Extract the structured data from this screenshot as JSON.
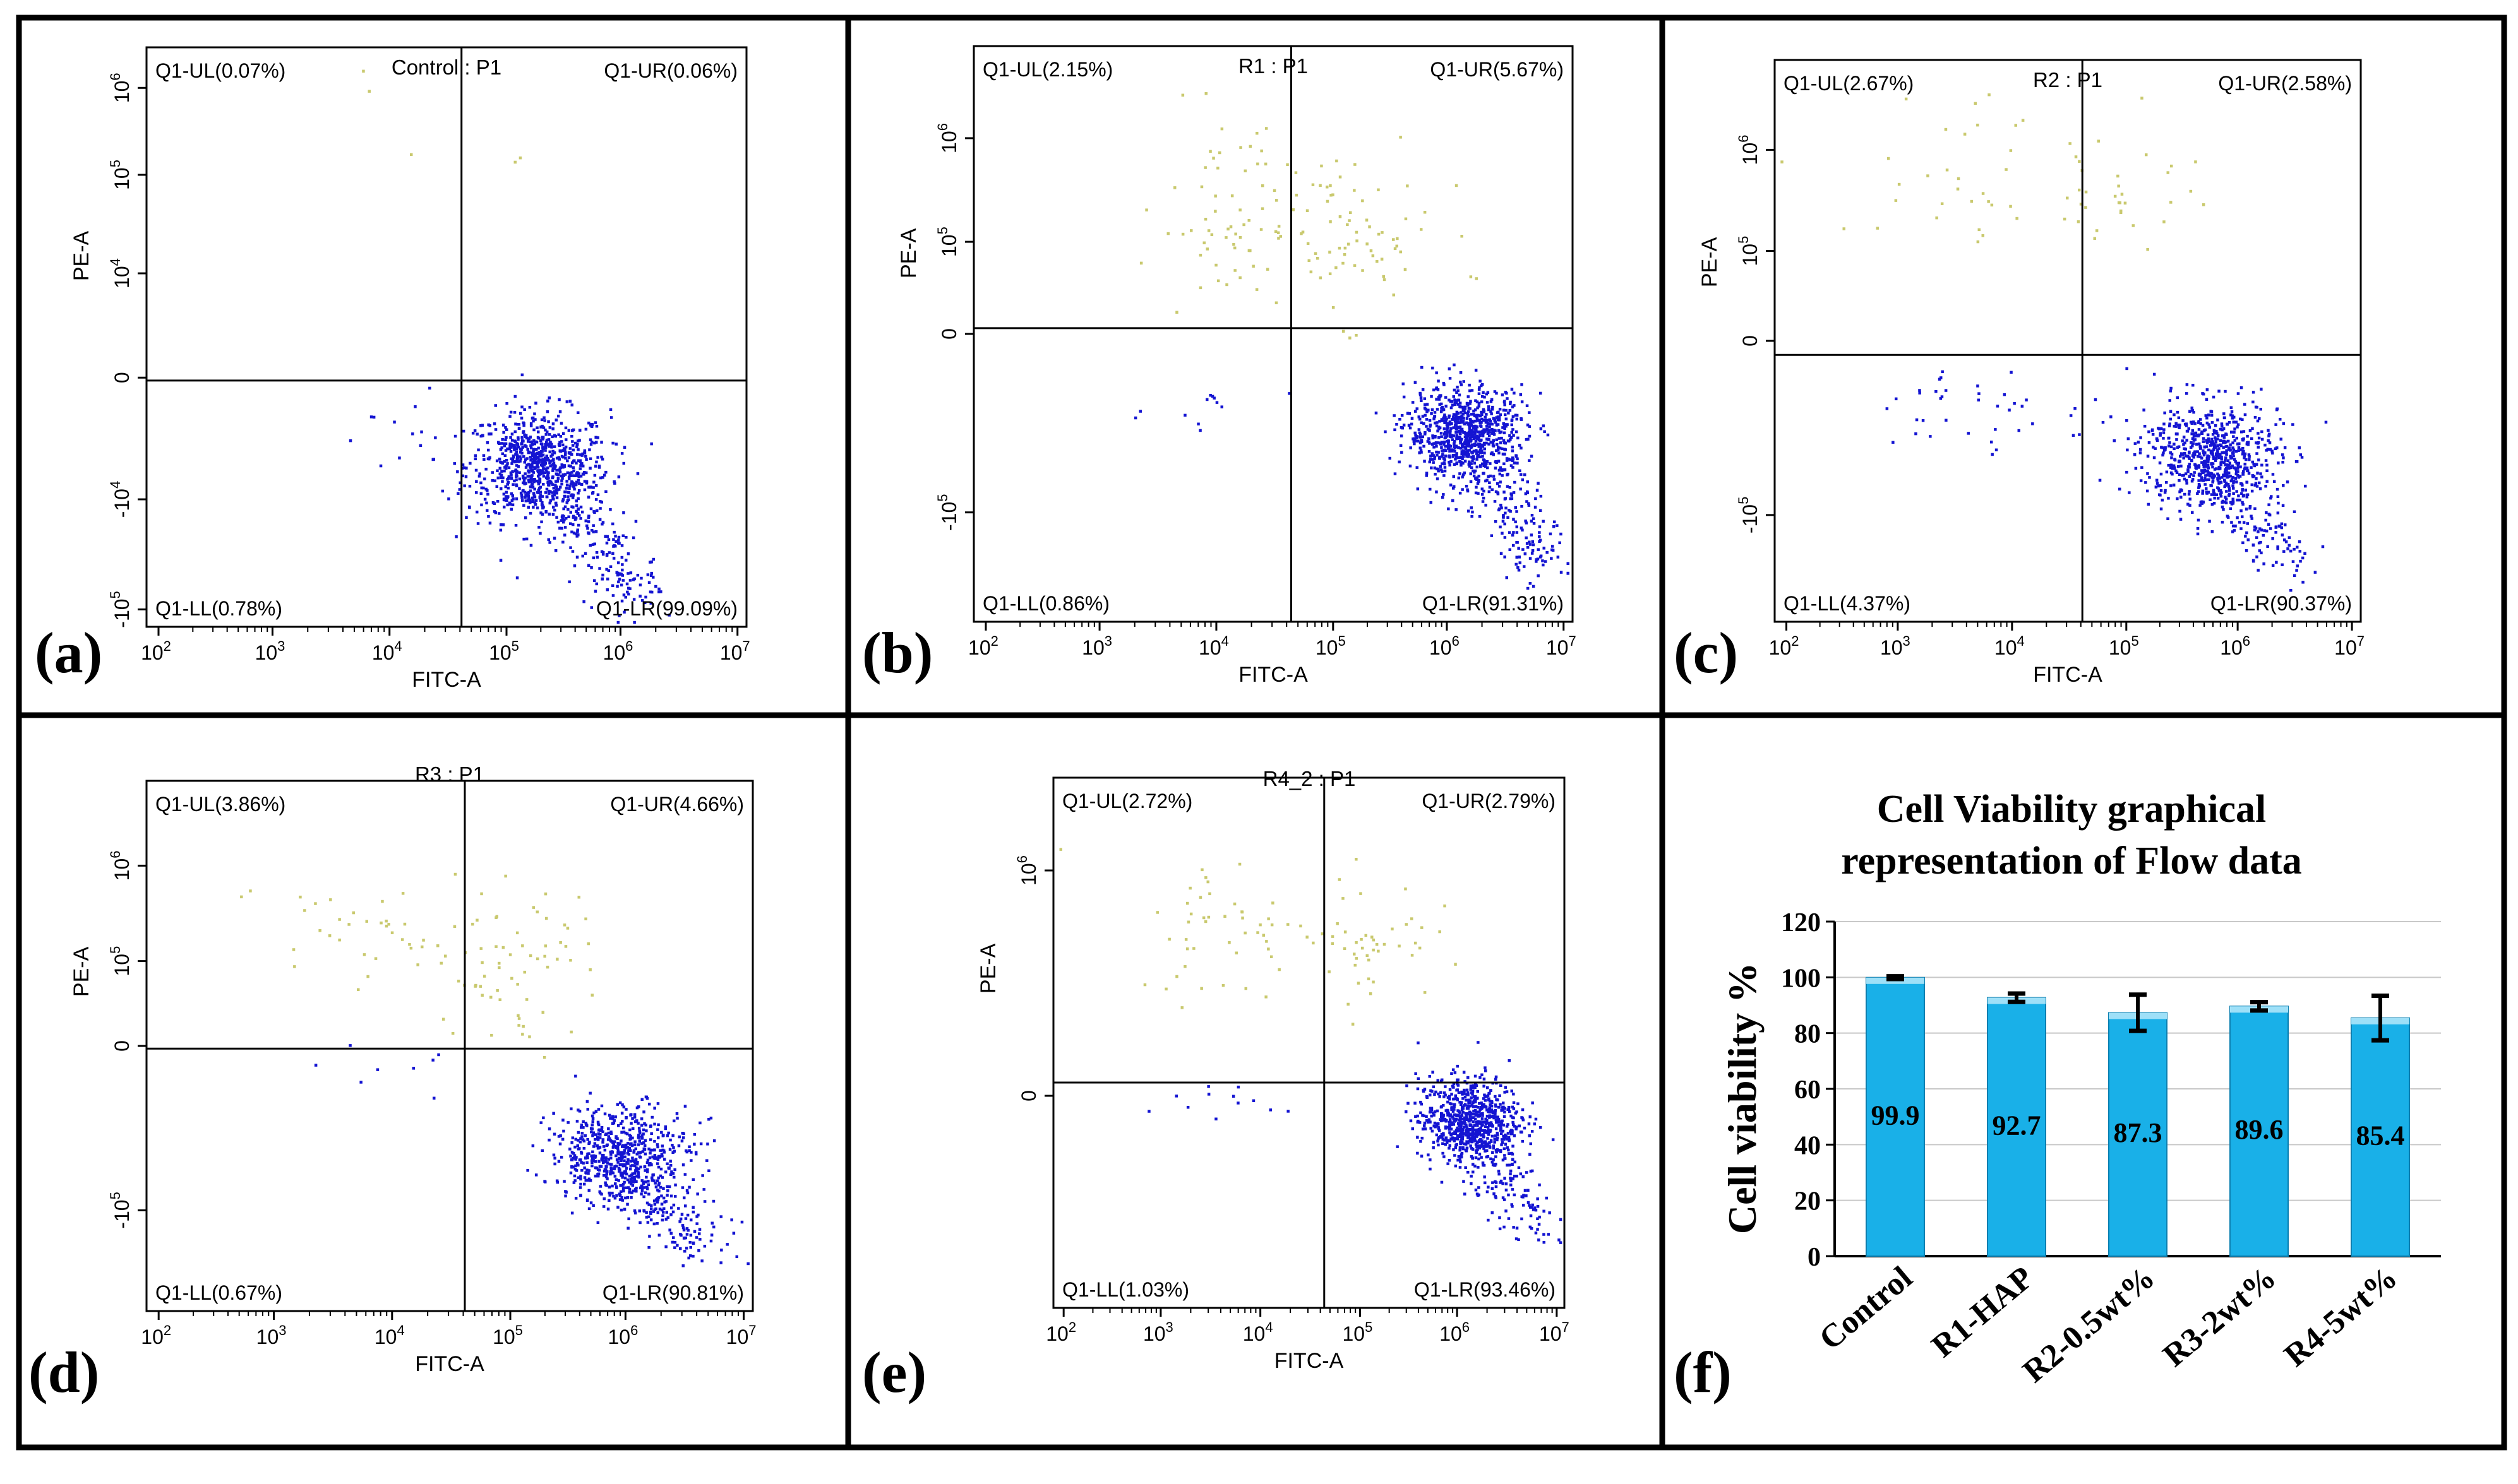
{
  "chart_data": [
    {
      "type": "scatter",
      "panel_label": "(a)",
      "title": "Control : P1",
      "xlabel": "FITC-A",
      "ylabel": "PE-A",
      "x_ticks": [
        {
          "b": "10",
          "e": "2"
        },
        {
          "b": "10",
          "e": "3"
        },
        {
          "b": "10",
          "e": "4"
        },
        {
          "b": "10",
          "e": "5"
        },
        {
          "b": "10",
          "e": "6"
        },
        {
          "b": "10",
          "e": "7"
        }
      ],
      "y_ticks": [
        {
          "b": "-10",
          "e": "5"
        },
        {
          "b": "-10",
          "e": "4"
        },
        {
          "b": "0",
          "e": ""
        },
        {
          "b": "10",
          "e": "4"
        },
        {
          "b": "10",
          "e": "5"
        },
        {
          "b": "10",
          "e": "6"
        }
      ],
      "quadrants": {
        "UL": "Q1-UL(0.07%)",
        "UR": "Q1-UR(0.06%)",
        "LL": "Q1-LL(0.78%)",
        "LR": "Q1-LR(99.09%)"
      },
      "gate": [
        0.525,
        0.575
      ],
      "population": {
        "ul": [
          0.4,
          0.85,
          0.1,
          0.08,
          3
        ],
        "ur": [
          0.6,
          0.8,
          0.05,
          0.04,
          2
        ],
        "ll": [
          0.42,
          0.35,
          0.04,
          0.05,
          10
        ],
        "lr_cluster": [
          0.65,
          0.28,
          0.06,
          0.06,
          700
        ],
        "tail": [
          [
            0.63,
            0.3
          ],
          [
            0.82,
            0.05
          ],
          350
        ]
      }
    },
    {
      "type": "scatter",
      "panel_label": "(b)",
      "title": "R1 : P1",
      "xlabel": "FITC-A",
      "ylabel": "PE-A",
      "x_ticks": [
        {
          "b": "10",
          "e": "2"
        },
        {
          "b": "10",
          "e": "3"
        },
        {
          "b": "10",
          "e": "4"
        },
        {
          "b": "10",
          "e": "5"
        },
        {
          "b": "10",
          "e": "6"
        },
        {
          "b": "10",
          "e": "7"
        }
      ],
      "y_ticks": [
        {
          "b": "-10",
          "e": "5"
        },
        {
          "b": "0",
          "e": ""
        },
        {
          "b": "10",
          "e": "5"
        },
        {
          "b": "10",
          "e": "6"
        }
      ],
      "quadrants": {
        "UL": "Q1-UL(2.15%)",
        "UR": "Q1-UR(5.67%)",
        "LL": "Q1-LL(0.86%)",
        "LR": "Q1-LR(91.31%)"
      },
      "gate": [
        0.53,
        0.49
      ],
      "population": {
        "ul": [
          0.42,
          0.7,
          0.06,
          0.08,
          60
        ],
        "ur": [
          0.62,
          0.68,
          0.08,
          0.07,
          80
        ],
        "ll": [
          0.35,
          0.37,
          0.06,
          0.03,
          12
        ],
        "lr_cluster": [
          0.82,
          0.33,
          0.05,
          0.05,
          750
        ],
        "tail": [
          [
            0.8,
            0.34
          ],
          [
            0.95,
            0.1
          ],
          300
        ]
      }
    },
    {
      "type": "scatter",
      "panel_label": "(c)",
      "title": "R2 : P1",
      "xlabel": "FITC-A",
      "ylabel": "PE-A",
      "x_ticks": [
        {
          "b": "10",
          "e": "2"
        },
        {
          "b": "10",
          "e": "3"
        },
        {
          "b": "10",
          "e": "4"
        },
        {
          "b": "10",
          "e": "5"
        },
        {
          "b": "10",
          "e": "6"
        },
        {
          "b": "10",
          "e": "7"
        }
      ],
      "y_ticks": [
        {
          "b": "-10",
          "e": "5"
        },
        {
          "b": "0",
          "e": ""
        },
        {
          "b": "10",
          "e": "5"
        },
        {
          "b": "10",
          "e": "6"
        }
      ],
      "quadrants": {
        "UL": "Q1-UL(2.67%)",
        "UR": "Q1-UR(2.58%)",
        "LL": "Q1-LL(4.37%)",
        "LR": "Q1-LR(90.37%)"
      },
      "gate": [
        0.525,
        0.525
      ],
      "population": {
        "ul": [
          0.35,
          0.8,
          0.12,
          0.08,
          35
        ],
        "ur": [
          0.6,
          0.78,
          0.06,
          0.06,
          30
        ],
        "ll": [
          0.35,
          0.38,
          0.12,
          0.04,
          40
        ],
        "lr_cluster": [
          0.74,
          0.3,
          0.06,
          0.06,
          600
        ],
        "tail": [
          [
            0.73,
            0.3
          ],
          [
            0.87,
            0.1
          ],
          250
        ]
      }
    },
    {
      "type": "scatter",
      "panel_label": "(d)",
      "title": "R3 : P1",
      "xlabel": "FITC-A",
      "ylabel": "PE-A",
      "x_ticks": [
        {
          "b": "10",
          "e": "2"
        },
        {
          "b": "10",
          "e": "3"
        },
        {
          "b": "10",
          "e": "4"
        },
        {
          "b": "10",
          "e": "5"
        },
        {
          "b": "10",
          "e": "6"
        },
        {
          "b": "10",
          "e": "7"
        }
      ],
      "y_ticks": [
        {
          "b": "-10",
          "e": "5"
        },
        {
          "b": "0",
          "e": ""
        },
        {
          "b": "10",
          "e": "5"
        },
        {
          "b": "10",
          "e": "6"
        }
      ],
      "quadrants": {
        "UL": "Q1-UL(3.86%)",
        "UR": "Q1-UR(4.66%)",
        "LL": "Q1-LL(0.67%)",
        "LR": "Q1-LR(90.81%)"
      },
      "gate": [
        0.525,
        0.505
      ],
      "population": {
        "ul": [
          0.38,
          0.7,
          0.1,
          0.07,
          45
        ],
        "ur": [
          0.62,
          0.65,
          0.06,
          0.07,
          55
        ],
        "ll": [
          0.4,
          0.45,
          0.06,
          0.04,
          8
        ],
        "lr_cluster": [
          0.78,
          0.3,
          0.06,
          0.06,
          550
        ],
        "tail": [
          [
            0.77,
            0.3
          ],
          [
            0.92,
            0.1
          ],
          250
        ]
      }
    },
    {
      "type": "scatter",
      "panel_label": "(e)",
      "title": "R4_2 : P1",
      "xlabel": "FITC-A",
      "ylabel": "PE-A",
      "x_ticks": [
        {
          "b": "10",
          "e": "2"
        },
        {
          "b": "10",
          "e": "3"
        },
        {
          "b": "10",
          "e": "4"
        },
        {
          "b": "10",
          "e": "5"
        },
        {
          "b": "10",
          "e": "6"
        },
        {
          "b": "10",
          "e": "7"
        }
      ],
      "y_ticks": [
        {
          "b": "0",
          "e": ""
        },
        {
          "b": "10",
          "e": "6"
        }
      ],
      "quadrants": {
        "UL": "Q1-UL(2.72%)",
        "UR": "Q1-UR(2.79%)",
        "LL": "Q1-LL(1.03%)",
        "LR": "Q1-LR(93.46%)"
      },
      "gate": [
        0.53,
        0.575
      ],
      "population": {
        "ul": [
          0.35,
          0.72,
          0.1,
          0.07,
          50
        ],
        "ur": [
          0.62,
          0.7,
          0.06,
          0.06,
          45
        ],
        "ll": [
          0.3,
          0.39,
          0.1,
          0.02,
          12
        ],
        "lr_cluster": [
          0.81,
          0.36,
          0.05,
          0.05,
          650
        ],
        "tail": [
          [
            0.8,
            0.36
          ],
          [
            0.95,
            0.15
          ],
          250
        ]
      }
    },
    {
      "type": "bar",
      "panel_label": "(f)",
      "title": "Cell Viability  graphical representation  of Flow data",
      "title_lines": [
        "Cell Viability  graphical",
        "representation  of Flow data"
      ],
      "xlabel": "",
      "ylabel": "Cell viability %",
      "ylim": [
        0,
        120
      ],
      "yticks": [
        0,
        20,
        40,
        60,
        80,
        100,
        120
      ],
      "categories": [
        "Control",
        "R1-HAP",
        "R2-0.5wt%",
        "R3-2wt%",
        "R4-5wt%"
      ],
      "values": [
        99.9,
        92.7,
        87.3,
        89.6,
        85.4
      ],
      "value_labels": [
        "99.9",
        "92.7",
        "87.3",
        "89.6",
        "85.4"
      ],
      "errors": [
        0.5,
        1.5,
        6.5,
        1.5,
        8
      ],
      "bar_color": "#19b0e8",
      "grid": true
    }
  ],
  "colors": {
    "lr": "#1414d2",
    "upper": "#c9c96e",
    "ll": "#1414d2",
    "frame": "#000000"
  }
}
